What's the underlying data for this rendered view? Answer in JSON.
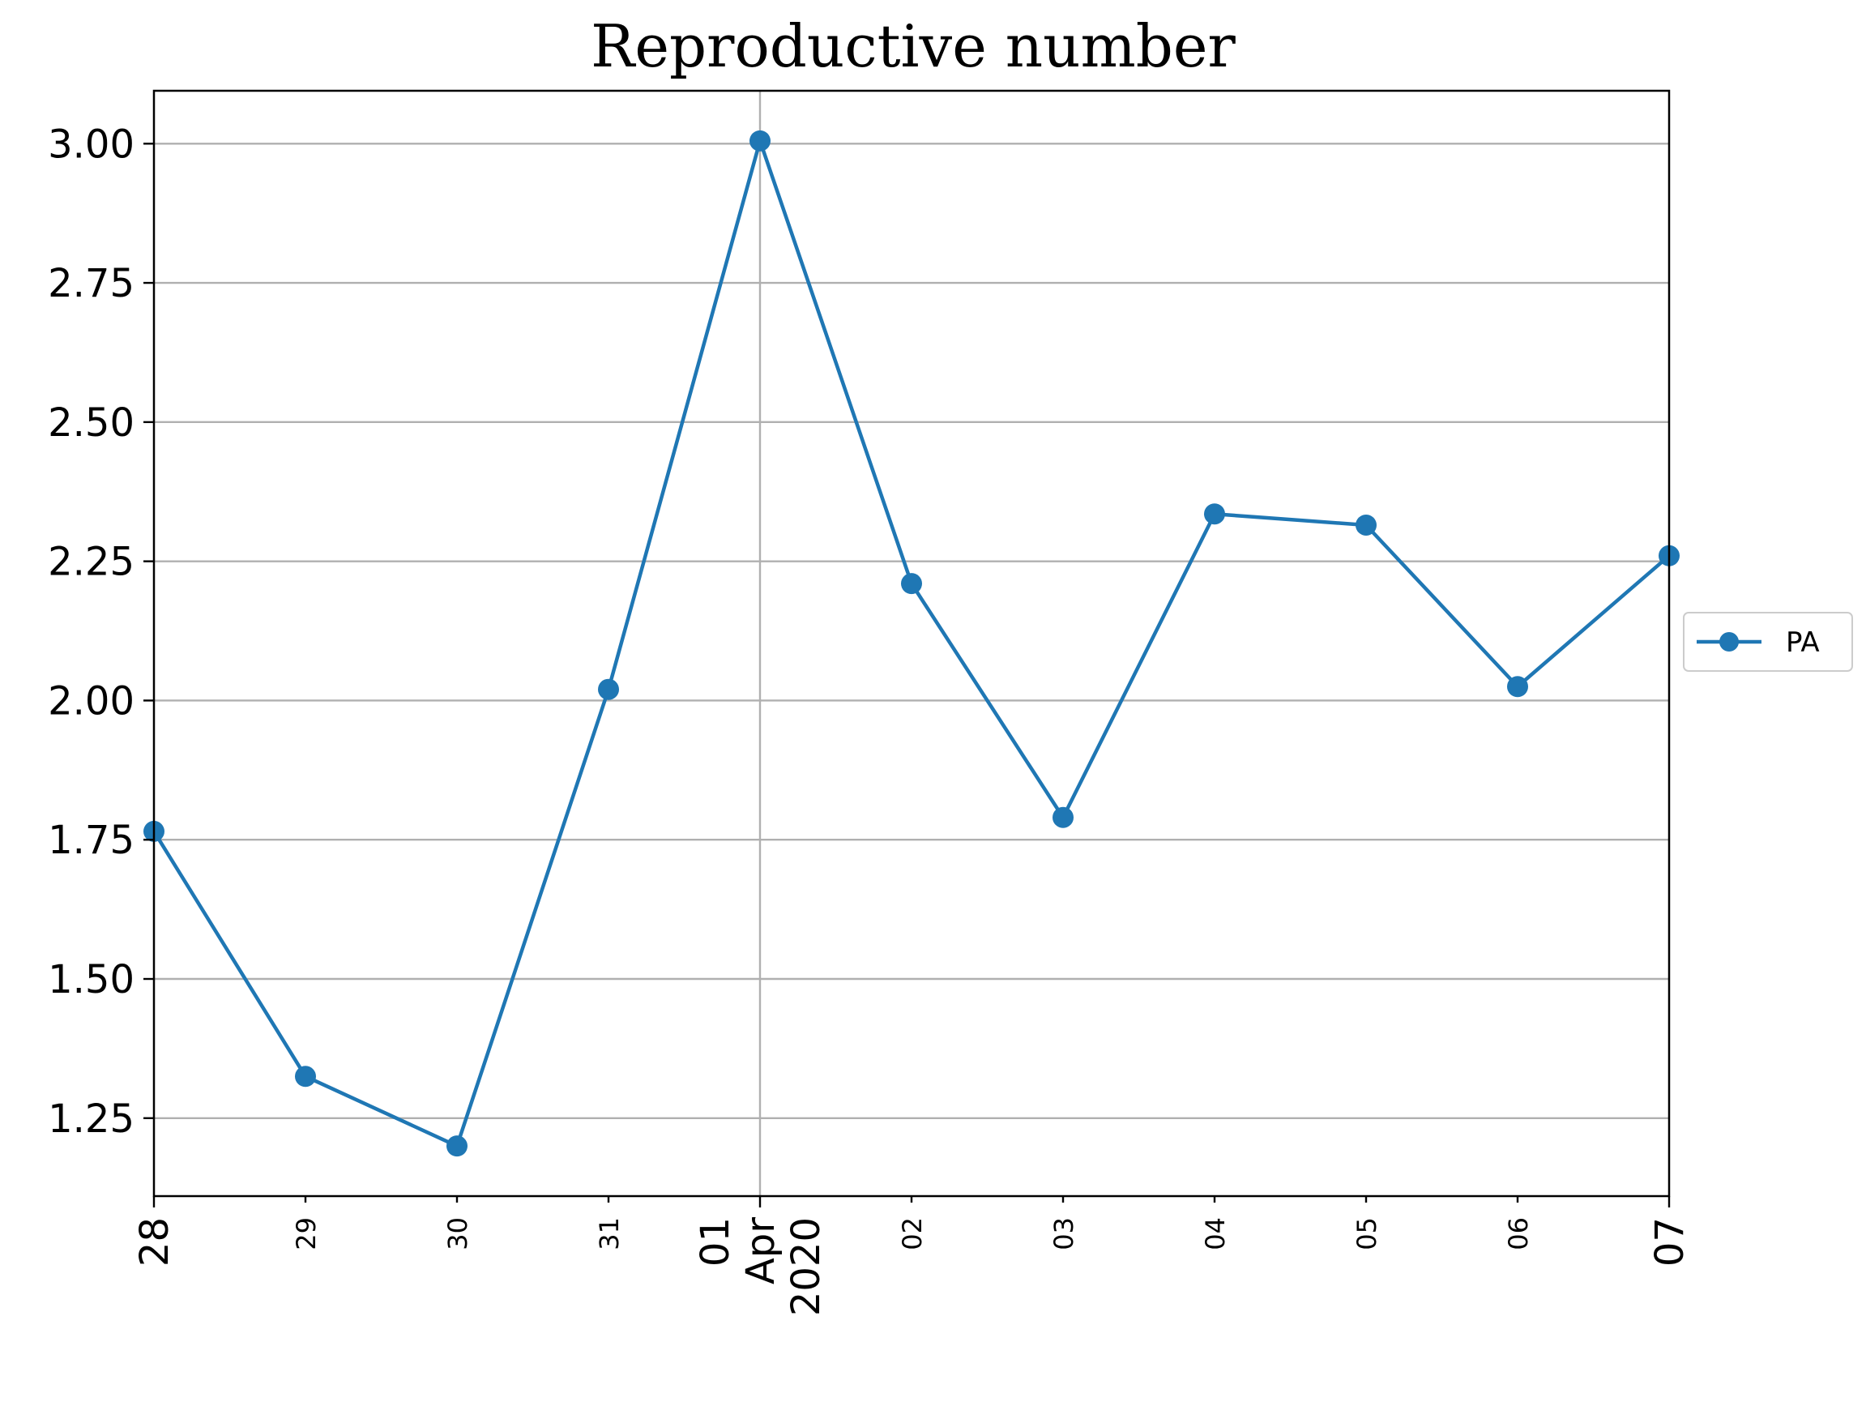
{
  "colors": {
    "series": "#1f77b4",
    "grid": "#b0b0b0",
    "axis": "#000000",
    "background": "#ffffff"
  },
  "chart_data": {
    "type": "line",
    "title": "Reproductive number",
    "xlabel": "",
    "ylabel": "",
    "x": [
      "2020-03-28",
      "2020-03-29",
      "2020-03-30",
      "2020-03-31",
      "2020-04-01",
      "2020-04-02",
      "2020-04-03",
      "2020-04-04",
      "2020-04-05",
      "2020-04-06",
      "2020-04-07"
    ],
    "x_tick_labels": [
      {
        "lines": [
          "28"
        ],
        "style": "major"
      },
      {
        "lines": [
          "29"
        ],
        "style": "minor"
      },
      {
        "lines": [
          "30"
        ],
        "style": "minor"
      },
      {
        "lines": [
          "31"
        ],
        "style": "minor"
      },
      {
        "lines": [
          "01",
          "Apr",
          "2020"
        ],
        "style": "major"
      },
      {
        "lines": [
          "02"
        ],
        "style": "minor"
      },
      {
        "lines": [
          "03"
        ],
        "style": "minor"
      },
      {
        "lines": [
          "04"
        ],
        "style": "minor"
      },
      {
        "lines": [
          "05"
        ],
        "style": "minor"
      },
      {
        "lines": [
          "06"
        ],
        "style": "minor"
      },
      {
        "lines": [
          "07"
        ],
        "style": "major"
      }
    ],
    "x_major_grid": [
      "2020-04-01"
    ],
    "series": [
      {
        "name": "PA",
        "marker": "circle",
        "values": [
          1.765,
          1.325,
          1.2,
          2.02,
          3.005,
          2.21,
          1.79,
          2.335,
          2.315,
          2.025,
          2.26
        ]
      }
    ],
    "ylim": [
      1.11,
      3.095
    ],
    "yticks": [
      1.25,
      1.5,
      1.75,
      2.0,
      2.25,
      2.5,
      2.75,
      3.0
    ],
    "ytick_labels": [
      "1.25",
      "1.50",
      "1.75",
      "2.00",
      "2.25",
      "2.50",
      "2.75",
      "3.00"
    ],
    "grid": true,
    "legend_position": "right-center"
  }
}
